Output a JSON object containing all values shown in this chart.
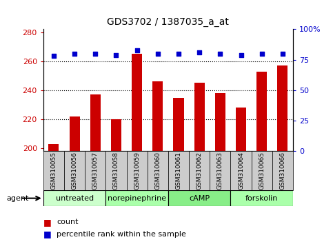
{
  "title": "GDS3702 / 1387035_a_at",
  "samples": [
    "GSM310055",
    "GSM310056",
    "GSM310057",
    "GSM310058",
    "GSM310059",
    "GSM310060",
    "GSM310061",
    "GSM310062",
    "GSM310063",
    "GSM310064",
    "GSM310065",
    "GSM310066"
  ],
  "counts": [
    203,
    222,
    237,
    220,
    265,
    246,
    235,
    245,
    238,
    228,
    253,
    257
  ],
  "percentile_ranks": [
    78,
    80,
    80,
    79,
    83,
    80,
    80,
    81,
    80,
    79,
    80,
    80
  ],
  "bar_color": "#cc0000",
  "dot_color": "#0000cc",
  "ylim_left": [
    198,
    282
  ],
  "ylim_right": [
    0,
    100
  ],
  "yticks_left": [
    200,
    220,
    240,
    260,
    280
  ],
  "yticks_right": [
    0,
    25,
    50,
    75,
    100
  ],
  "grid_yticks": [
    220,
    240,
    260
  ],
  "agent_groups": [
    {
      "label": "untreated",
      "start": 0,
      "end": 3,
      "color": "#ccffcc"
    },
    {
      "label": "norepinephrine",
      "start": 3,
      "end": 6,
      "color": "#aaffaa"
    },
    {
      "label": "cAMP",
      "start": 6,
      "end": 9,
      "color": "#88ee88"
    },
    {
      "label": "forskolin",
      "start": 9,
      "end": 12,
      "color": "#aaffaa"
    }
  ],
  "tick_label_bg": "#cccccc",
  "bar_bottom": 198,
  "bar_width": 0.5,
  "legend_count_label": "count",
  "legend_percentile_label": "percentile rank within the sample"
}
